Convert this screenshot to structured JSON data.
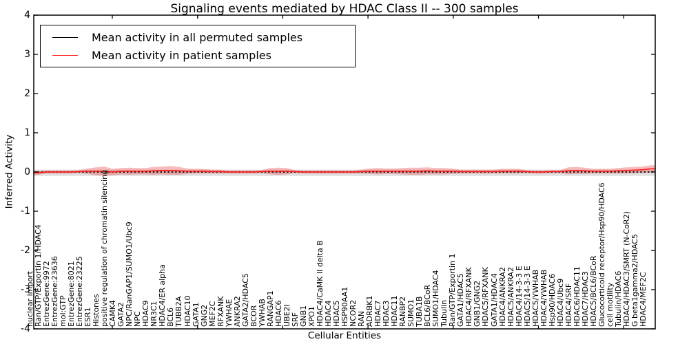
{
  "title": "Signaling events mediated by HDAC Class II -- 300 samples",
  "axes": {
    "xlabel": "Cellular Entities",
    "ylabel": "Inferred Activity"
  },
  "legend": {
    "items": [
      {
        "label": "Mean activity in all permuted samples",
        "color": "#000000"
      },
      {
        "label": "Mean activity in patient samples",
        "color": "#ff1414"
      }
    ]
  },
  "chart_data": {
    "type": "line",
    "title": "Signaling events mediated by HDAC Class II -- 300 samples",
    "xlabel": "Cellular Entities",
    "ylabel": "Inferred Activity",
    "ylim": [
      -4,
      4
    ],
    "yticks": [
      "4",
      "3",
      "2",
      "1",
      "0",
      "-1",
      "-2",
      "-3",
      "-4"
    ],
    "ytick_values": [
      4,
      3,
      2,
      1,
      0,
      -1,
      -2,
      -3,
      -4
    ],
    "grid": false,
    "legend_position": "upper left",
    "categories": [
      "nuclear import",
      "Ran/GTP/Exportin 1/HDAC4",
      "EntrezGene:9972",
      "EntrezGene:23636",
      "mol:GTP",
      "EntrezGene:8021",
      "EntrezGene:23225",
      "ESR1",
      "Histones",
      "positive regulation of chromatin silencing",
      "CAMK4",
      "GATA2",
      "NPC/RanGAP1/SUMO1/Ubc9",
      "NPC",
      "HDAC9",
      "NR3C1",
      "HDAC4/ER alpha",
      "BCL6",
      "TUBB2A",
      "HDAC10",
      "GATA1",
      "GNG2",
      "MEF2C",
      "RFXANK",
      "YWHAE",
      "ANKRA2",
      "GATA2/HDAC5",
      "BCOR",
      "YWHAB",
      "RANGAP1",
      "HDAC6",
      "UBE2I",
      "SRF",
      "GNB1",
      "XPO1",
      "HDAC4/CaMK II delta B",
      "HDAC4",
      "HDAC5",
      "HSP90AA1",
      "NCOR2",
      "RAN",
      "ADRBK1",
      "HDAC7",
      "HDAC3",
      "HDAC11",
      "RANBP2",
      "SUMO1",
      "TUBA1B",
      "BCL6/BCoR",
      "SUMO1/HDAC4",
      "Tubulin",
      "Ran/GTP/Exportin 1",
      "GATA1/HDAC5",
      "HDAC4/RFXANK",
      "GNB1/GNG2",
      "HDAC5/RFXANK",
      "GATA1/HDAC4",
      "HDAC4/ANKRA2",
      "HDAC5/ANKRA2",
      "HDAC4/14-3-3 E",
      "HDAC5/14-3-3 E",
      "HDAC5/YWHAB",
      "HDAC4/YWHAB",
      "Hsp90/HDAC6",
      "HDAC4/Ubc9",
      "HDAC4/SRF",
      "HDAC6/HDAC11",
      "HDAC7/HDAC3",
      "HDAC5/BCL6/BCoR",
      "Glucocorticoid receptor/Hsp90/HDAC6",
      "cell motility",
      "Tubulin/HDAC6",
      "HDAC4/HDAC3/SMRT (N-CoR2)",
      "G beta1gamma2/HDAC5",
      "HDAC4/MEF2C"
    ],
    "series": [
      {
        "name": "Mean activity in all permuted samples",
        "color": "#000000",
        "style": "dashed",
        "values_constant": 0,
        "band_color": "rgba(115,115,115,0.22)",
        "band_center_offset": -0.02,
        "band_halfwidth_constant": 0.08
      },
      {
        "name": "Mean activity in patient samples",
        "color": "#ff1414",
        "style": "solid",
        "band_color": "rgba(235,50,50,0.33)",
        "values": [
          -0.02,
          0,
          0,
          0,
          0,
          0.01,
          0.02,
          0.02,
          0.02,
          0,
          0.02,
          0.02,
          0.02,
          0.02,
          0.03,
          0.04,
          0.04,
          0.03,
          0.02,
          0.02,
          0.02,
          0.01,
          0.01,
          0,
          0,
          0,
          0,
          0.01,
          0.02,
          0.02,
          0.02,
          0.01,
          0,
          0,
          0,
          0,
          0,
          0,
          0,
          0.01,
          0.02,
          0.02,
          0.02,
          0.02,
          0.02,
          0.02,
          0.02,
          0.03,
          0.02,
          0.02,
          0.02,
          0.01,
          0.01,
          0.01,
          0.01,
          0.01,
          0.02,
          0.02,
          0.02,
          0.01,
          0,
          0,
          0.01,
          0.01,
          0.03,
          0.04,
          0.03,
          0.02,
          0.02,
          0.02,
          0.03,
          0.04,
          0.05,
          0.06,
          0.08
        ],
        "band_halfwidth": [
          0.05,
          0.04,
          0.04,
          0.04,
          0.04,
          0.04,
          0.07,
          0.1,
          0.12,
          0.08,
          0.08,
          0.09,
          0.08,
          0.08,
          0.1,
          0.1,
          0.11,
          0.1,
          0.07,
          0.06,
          0.06,
          0.05,
          0.05,
          0.04,
          0.04,
          0.04,
          0.04,
          0.04,
          0.08,
          0.09,
          0.08,
          0.04,
          0.04,
          0.04,
          0.04,
          0.04,
          0.04,
          0.04,
          0.04,
          0.05,
          0.07,
          0.08,
          0.07,
          0.07,
          0.08,
          0.09,
          0.09,
          0.09,
          0.08,
          0.08,
          0.07,
          0.05,
          0.05,
          0.05,
          0.05,
          0.05,
          0.06,
          0.06,
          0.06,
          0.04,
          0.04,
          0.04,
          0.04,
          0.04,
          0.09,
          0.09,
          0.08,
          0.06,
          0.06,
          0.06,
          0.07,
          0.08,
          0.08,
          0.08,
          0.09
        ]
      }
    ]
  }
}
